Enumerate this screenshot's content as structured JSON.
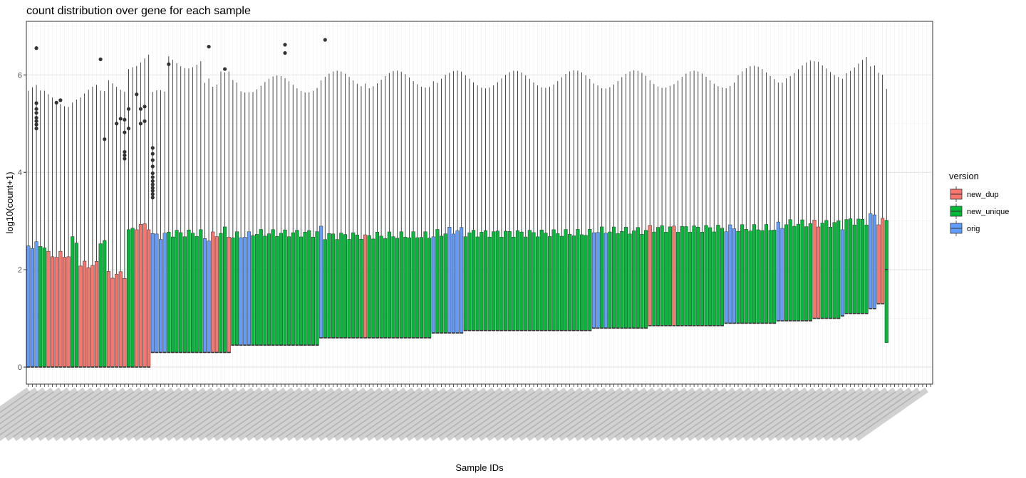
{
  "chart_data": {
    "type": "box",
    "title": "count distribution over gene for each sample",
    "xlabel": "Sample IDs",
    "ylabel": "log10(count+1)",
    "ylim": [
      -0.35,
      7.1
    ],
    "yticks": [
      0,
      2,
      4,
      6
    ],
    "grid": true,
    "legend": {
      "title": "version",
      "position": "right",
      "entries": [
        {
          "name": "new_dup",
          "color": "#F8766D"
        },
        {
          "name": "new_unique",
          "color": "#00BA38"
        },
        {
          "name": "orig",
          "color": "#619CFF"
        }
      ]
    },
    "sample_count": 226,
    "colors": {
      "new_dup": "#F8766D",
      "new_unique": "#00BA38",
      "orig": "#619CFF"
    },
    "groups": [
      {
        "version": "orig",
        "count": 3,
        "q1": 0,
        "median": 0,
        "q3": 2.5,
        "max": 5.6
      },
      {
        "version": "new_unique",
        "count": 2,
        "q1": 0,
        "median": 0,
        "q3": 2.5,
        "max": 5.5
      },
      {
        "version": "new_dup",
        "count": 6,
        "q1": 0,
        "median": 0,
        "q3": 2.3,
        "max": 5.5
      },
      {
        "version": "new_unique",
        "count": 2,
        "q1": 0,
        "median": 0,
        "q3": 2.6,
        "max": 5.6
      },
      {
        "version": "new_dup",
        "count": 5,
        "q1": 0,
        "median": 0,
        "q3": 2.1,
        "max": 5.6
      },
      {
        "version": "new_unique",
        "count": 2,
        "q1": 0,
        "median": 0,
        "q3": 2.6,
        "max": 5.5
      },
      {
        "version": "new_dup",
        "count": 5,
        "q1": 0,
        "median": 0,
        "q3": 1.9,
        "max": 5.8
      },
      {
        "version": "new_unique",
        "count": 2,
        "q1": 0,
        "median": 0,
        "q3": 2.8,
        "max": 6.3
      },
      {
        "version": "new_dup",
        "count": 4,
        "q1": 0,
        "median": 0,
        "q3": 2.9,
        "max": 6.3
      },
      {
        "version": "orig",
        "count": 4,
        "q1": 0.3,
        "median": 0.3,
        "q3": 2.7,
        "max": 5.5
      },
      {
        "version": "new_unique",
        "count": 9,
        "q1": 0.3,
        "median": 0.3,
        "q3": 2.75,
        "max": 6.3
      },
      {
        "version": "orig",
        "count": 2,
        "q1": 0.3,
        "median": 0.3,
        "q3": 2.65,
        "max": 5.8
      },
      {
        "version": "new_dup",
        "count": 2,
        "q1": 0.3,
        "median": 0.3,
        "q3": 2.7,
        "max": 5.6
      },
      {
        "version": "new_unique",
        "count": 2,
        "q1": 0.3,
        "median": 0.3,
        "q3": 2.8,
        "max": 5.9
      },
      {
        "version": "new_dup",
        "count": 1,
        "q1": 0.3,
        "median": 0.3,
        "q3": 2.7,
        "max": 6.0
      },
      {
        "version": "new_unique",
        "count": 2,
        "q1": 0.45,
        "median": 0.45,
        "q3": 2.7,
        "max": 5.9
      },
      {
        "version": "orig",
        "count": 3,
        "q1": 0.45,
        "median": 0.45,
        "q3": 2.7,
        "max": 5.8
      },
      {
        "version": "new_unique",
        "count": 17,
        "q1": 0.45,
        "median": 0.45,
        "q3": 2.75,
        "max": 5.8
      },
      {
        "version": "orig",
        "count": 1,
        "q1": 0.6,
        "median": 0.6,
        "q3": 2.85,
        "max": 5.9
      },
      {
        "version": "new_unique",
        "count": 10,
        "q1": 0.6,
        "median": 0.6,
        "q3": 2.7,
        "max": 5.9
      },
      {
        "version": "new_dup",
        "count": 1,
        "q1": 0.6,
        "median": 0.6,
        "q3": 2.65,
        "max": 6.0
      },
      {
        "version": "new_unique",
        "count": 16,
        "q1": 0.6,
        "median": 0.6,
        "q3": 2.7,
        "max": 5.9
      },
      {
        "version": "orig",
        "count": 1,
        "q1": 0.7,
        "median": 0.7,
        "q3": 2.7,
        "max": 6.0
      },
      {
        "version": "new_unique",
        "count": 3,
        "q1": 0.7,
        "median": 0.7,
        "q3": 2.75,
        "max": 5.9
      },
      {
        "version": "orig",
        "count": 4,
        "q1": 0.7,
        "median": 0.7,
        "q3": 2.8,
        "max": 5.9
      },
      {
        "version": "new_unique",
        "count": 32,
        "q1": 0.75,
        "median": 0.75,
        "q3": 2.75,
        "max": 5.9
      },
      {
        "version": "orig",
        "count": 2,
        "q1": 0.8,
        "median": 0.8,
        "q3": 2.8,
        "max": 5.9
      },
      {
        "version": "new_unique",
        "count": 1,
        "q1": 0.8,
        "median": 0.8,
        "q3": 2.8,
        "max": 5.9
      },
      {
        "version": "orig",
        "count": 1,
        "q1": 0.8,
        "median": 0.8,
        "q3": 2.8,
        "max": 5.9
      },
      {
        "version": "new_unique",
        "count": 10,
        "q1": 0.8,
        "median": 0.8,
        "q3": 2.8,
        "max": 5.9
      },
      {
        "version": "new_dup",
        "count": 1,
        "q1": 0.85,
        "median": 0.85,
        "q3": 2.85,
        "max": 5.9
      },
      {
        "version": "new_unique",
        "count": 5,
        "q1": 0.85,
        "median": 0.85,
        "q3": 2.85,
        "max": 5.9
      },
      {
        "version": "new_dup",
        "count": 1,
        "q1": 0.85,
        "median": 0.85,
        "q3": 2.85,
        "max": 5.9
      },
      {
        "version": "new_unique",
        "count": 12,
        "q1": 0.85,
        "median": 0.85,
        "q3": 2.85,
        "max": 5.9
      },
      {
        "version": "orig",
        "count": 3,
        "q1": 0.9,
        "median": 0.9,
        "q3": 2.85,
        "max": 5.9
      },
      {
        "version": "new_unique",
        "count": 10,
        "q1": 0.9,
        "median": 0.9,
        "q3": 2.85,
        "max": 6.0
      },
      {
        "version": "orig",
        "count": 2,
        "q1": 0.95,
        "median": 0.95,
        "q3": 2.9,
        "max": 6.0
      },
      {
        "version": "new_unique",
        "count": 7,
        "q1": 0.95,
        "median": 0.95,
        "q3": 2.95,
        "max": 6.1
      },
      {
        "version": "new_dup",
        "count": 2,
        "q1": 1.0,
        "median": 1.0,
        "q3": 2.95,
        "max": 6.1
      },
      {
        "version": "new_unique",
        "count": 5,
        "q1": 1.0,
        "median": 1.0,
        "q3": 2.95,
        "max": 6.1
      },
      {
        "version": "orig",
        "count": 1,
        "q1": 1.05,
        "median": 1.05,
        "q3": 2.9,
        "max": 6.1
      },
      {
        "version": "new_unique",
        "count": 6,
        "q1": 1.1,
        "median": 1.1,
        "q3": 3.0,
        "max": 6.2
      },
      {
        "version": "orig",
        "count": 2,
        "q1": 1.2,
        "median": 1.2,
        "q3": 3.1,
        "max": 6.0
      },
      {
        "version": "new_dup",
        "count": 2,
        "q1": 1.3,
        "median": 1.3,
        "q3": 3.0,
        "max": 5.9
      },
      {
        "version": "new_unique",
        "count": 1,
        "q1": 0.5,
        "median": 2.0,
        "q3": 3.0,
        "max": 5.7
      }
    ],
    "outliers": [
      {
        "sample": 2,
        "values": [
          6.55,
          5.42,
          5.3,
          5.22,
          5.12,
          5.05,
          4.98,
          4.9
        ]
      },
      {
        "sample": 7,
        "values": [
          5.43
        ]
      },
      {
        "sample": 8,
        "values": [
          5.48
        ]
      },
      {
        "sample": 18,
        "values": [
          6.32
        ]
      },
      {
        "sample": 19,
        "values": [
          4.68
        ]
      },
      {
        "sample": 22,
        "values": [
          5.0
        ]
      },
      {
        "sample": 23,
        "values": [
          5.1
        ]
      },
      {
        "sample": 24,
        "values": [
          5.08,
          4.82,
          4.42,
          4.35,
          4.28
        ]
      },
      {
        "sample": 25,
        "values": [
          5.3,
          4.9
        ]
      },
      {
        "sample": 27,
        "values": [
          5.6
        ]
      },
      {
        "sample": 28,
        "values": [
          5.3,
          5.0
        ]
      },
      {
        "sample": 29,
        "values": [
          5.35,
          5.05
        ]
      },
      {
        "sample": 31,
        "values": [
          4.5,
          4.38,
          4.25,
          4.12,
          3.98,
          3.9,
          3.82,
          3.75,
          3.68,
          3.62,
          3.55,
          3.48
        ]
      },
      {
        "sample": 35,
        "values": [
          6.22
        ]
      },
      {
        "sample": 45,
        "values": [
          6.58
        ]
      },
      {
        "sample": 49,
        "values": [
          6.12
        ]
      },
      {
        "sample": 64,
        "values": [
          6.62,
          6.45
        ]
      },
      {
        "sample": 74,
        "values": [
          6.72
        ]
      }
    ]
  }
}
